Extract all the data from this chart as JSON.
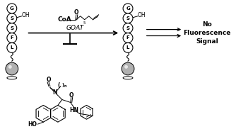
{
  "bg_color": "#ffffff",
  "peptide_letters": [
    "G",
    "S",
    "S",
    "F",
    "L"
  ],
  "oh_label": "OH",
  "coa_label": "CoA",
  "goat_label": "GOAT",
  "no_fluor_text": "No\nFluorescence\nSignal",
  "inhibitor_ho": "HO",
  "inhibitor_hn": "HN",
  "inhibitor_o_acyl": "O",
  "inhibitor_o_amide": "O",
  "n_label": "N",
  "subscript_5": "5",
  "subscript_n": "n"
}
